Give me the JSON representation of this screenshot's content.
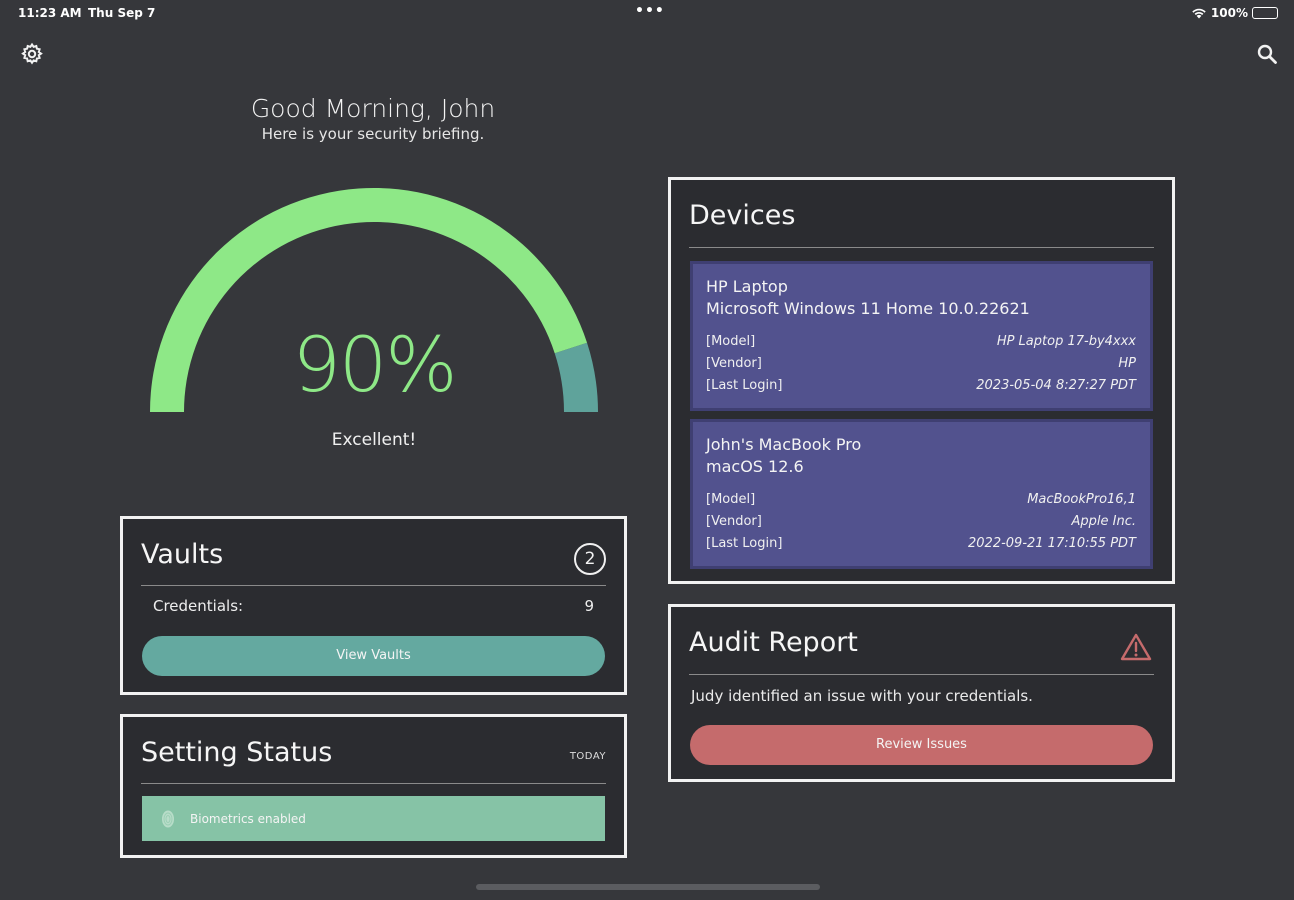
{
  "status_bar": {
    "time": "11:23 AM",
    "date": "Thu Sep 7",
    "dots": "•••",
    "battery": "100%"
  },
  "header": {
    "greeting": "Good Morning, John",
    "subtitle": "Here is your security briefing."
  },
  "score": {
    "value": "90%",
    "label": "Excellent!",
    "fraction": 0.9,
    "colors": {
      "good": "#8ee887",
      "rest": "#5fa39b"
    }
  },
  "vaults": {
    "title": "Vaults",
    "count": "2",
    "credentials_label": "Credentials:",
    "credentials_value": "9",
    "button": "View Vaults"
  },
  "settings": {
    "title": "Setting Status",
    "badge": "TODAY",
    "item": "Biometrics enabled"
  },
  "devices": {
    "title": "Devices",
    "items": [
      {
        "name": "HP Laptop",
        "os": "Microsoft Windows 11 Home 10.0.22621",
        "model_label": "[Model]",
        "model": "HP Laptop 17-by4xxx",
        "vendor_label": "[Vendor]",
        "vendor": "HP",
        "login_label": "[Last Login]",
        "login": "2023-05-04 8:27:27 PDT"
      },
      {
        "name": "John's MacBook Pro",
        "os": "macOS 12.6",
        "model_label": "[Model]",
        "model": "MacBookPro16,1",
        "vendor_label": "[Vendor]",
        "vendor": "Apple Inc.",
        "login_label": "[Last Login]",
        "login": "2022-09-21 17:10:55 PDT"
      }
    ]
  },
  "audit": {
    "title": "Audit Report",
    "message": "Judy identified an issue with your credentials.",
    "button": "Review Issues"
  }
}
